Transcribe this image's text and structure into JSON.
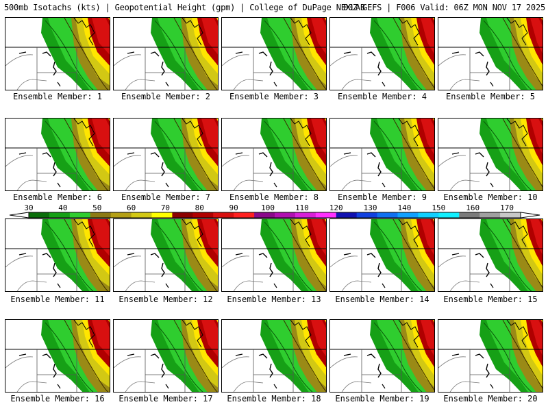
{
  "title": {
    "left": "500mb Isotachs (kts) | Geopotential Height (gpm) | College of DuPage NEXLAB",
    "right": "00Z GEFS | F006 Valid: 06Z MON NOV 17 2025"
  },
  "members": [
    "Ensemble Member: 1",
    "Ensemble Member: 2",
    "Ensemble Member: 3",
    "Ensemble Member: 4",
    "Ensemble Member: 5",
    "Ensemble Member: 6",
    "Ensemble Member: 7",
    "Ensemble Member: 8",
    "Ensemble Member: 9",
    "Ensemble Member: 10",
    "Ensemble Member: 11",
    "Ensemble Member: 12",
    "Ensemble Member: 13",
    "Ensemble Member: 14",
    "Ensemble Member: 15",
    "Ensemble Member: 16",
    "Ensemble Member: 17",
    "Ensemble Member: 18",
    "Ensemble Member: 19",
    "Ensemble Member: 20"
  ],
  "colorbar": {
    "tick_labels": [
      "30",
      "40",
      "50",
      "60",
      "70",
      "80",
      "90",
      "100",
      "110",
      "120",
      "130",
      "140",
      "150",
      "160",
      "170"
    ],
    "colors": [
      "#0a6e0a",
      "#16a016",
      "#2fcd2f",
      "#8c7a14",
      "#b4a016",
      "#d2c814",
      "#ffff00",
      "#8b0000",
      "#b00000",
      "#d81010",
      "#ff2020",
      "#8a0a8a",
      "#b010b0",
      "#d820d8",
      "#ff30ff",
      "#1010b0",
      "#1040e0",
      "#1070f0",
      "#10a0ff",
      "#10d0ff",
      "#10f0ff",
      "#7a7a7a",
      "#a0a0a0",
      "#c8c8c8"
    ]
  }
}
